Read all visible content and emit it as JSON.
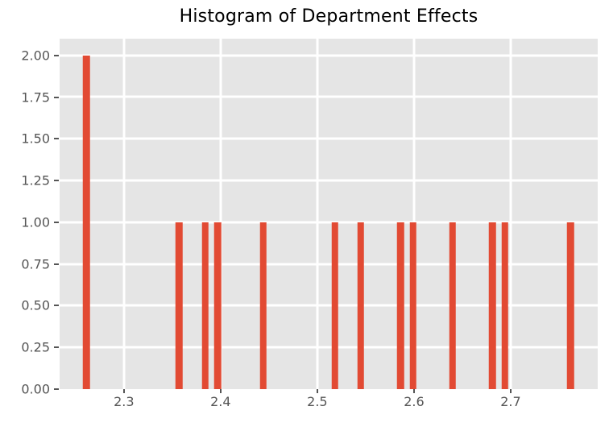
{
  "chart_data": {
    "type": "bar",
    "variant": "histogram",
    "title": "Histogram of Department Effects",
    "xlabel": "",
    "ylabel": "",
    "bars": [
      {
        "x": 2.261,
        "count": 2
      },
      {
        "x": 2.357,
        "count": 1
      },
      {
        "x": 2.384,
        "count": 1
      },
      {
        "x": 2.397,
        "count": 1
      },
      {
        "x": 2.444,
        "count": 1
      },
      {
        "x": 2.518,
        "count": 1
      },
      {
        "x": 2.545,
        "count": 1
      },
      {
        "x": 2.586,
        "count": 1
      },
      {
        "x": 2.599,
        "count": 1
      },
      {
        "x": 2.64,
        "count": 1
      },
      {
        "x": 2.681,
        "count": 1
      },
      {
        "x": 2.694,
        "count": 1
      },
      {
        "x": 2.762,
        "count": 1
      }
    ],
    "bar_width": 0.0071,
    "xlim": [
      2.2335,
      2.79
    ],
    "ylim": [
      0,
      2.1
    ],
    "x_ticks": [
      {
        "value": 2.3,
        "label": "2.3"
      },
      {
        "value": 2.4,
        "label": "2.4"
      },
      {
        "value": 2.5,
        "label": "2.5"
      },
      {
        "value": 2.6,
        "label": "2.6"
      },
      {
        "value": 2.7,
        "label": "2.7"
      }
    ],
    "y_ticks": [
      {
        "value": 0.0,
        "label": "0.00"
      },
      {
        "value": 0.25,
        "label": "0.25"
      },
      {
        "value": 0.5,
        "label": "0.50"
      },
      {
        "value": 0.75,
        "label": "0.75"
      },
      {
        "value": 1.0,
        "label": "1.00"
      },
      {
        "value": 1.25,
        "label": "1.25"
      },
      {
        "value": 1.5,
        "label": "1.50"
      },
      {
        "value": 1.75,
        "label": "1.75"
      },
      {
        "value": 2.0,
        "label": "2.00"
      }
    ],
    "grid": true,
    "legend": false,
    "colors": {
      "bar": "#E24A33",
      "plot_bg": "#E5E5E5",
      "figure_bg": "#FFFFFF",
      "grid": "#FFFFFF",
      "tick_label": "#555555",
      "tick_mark": "#555555",
      "title": "#000000"
    }
  }
}
